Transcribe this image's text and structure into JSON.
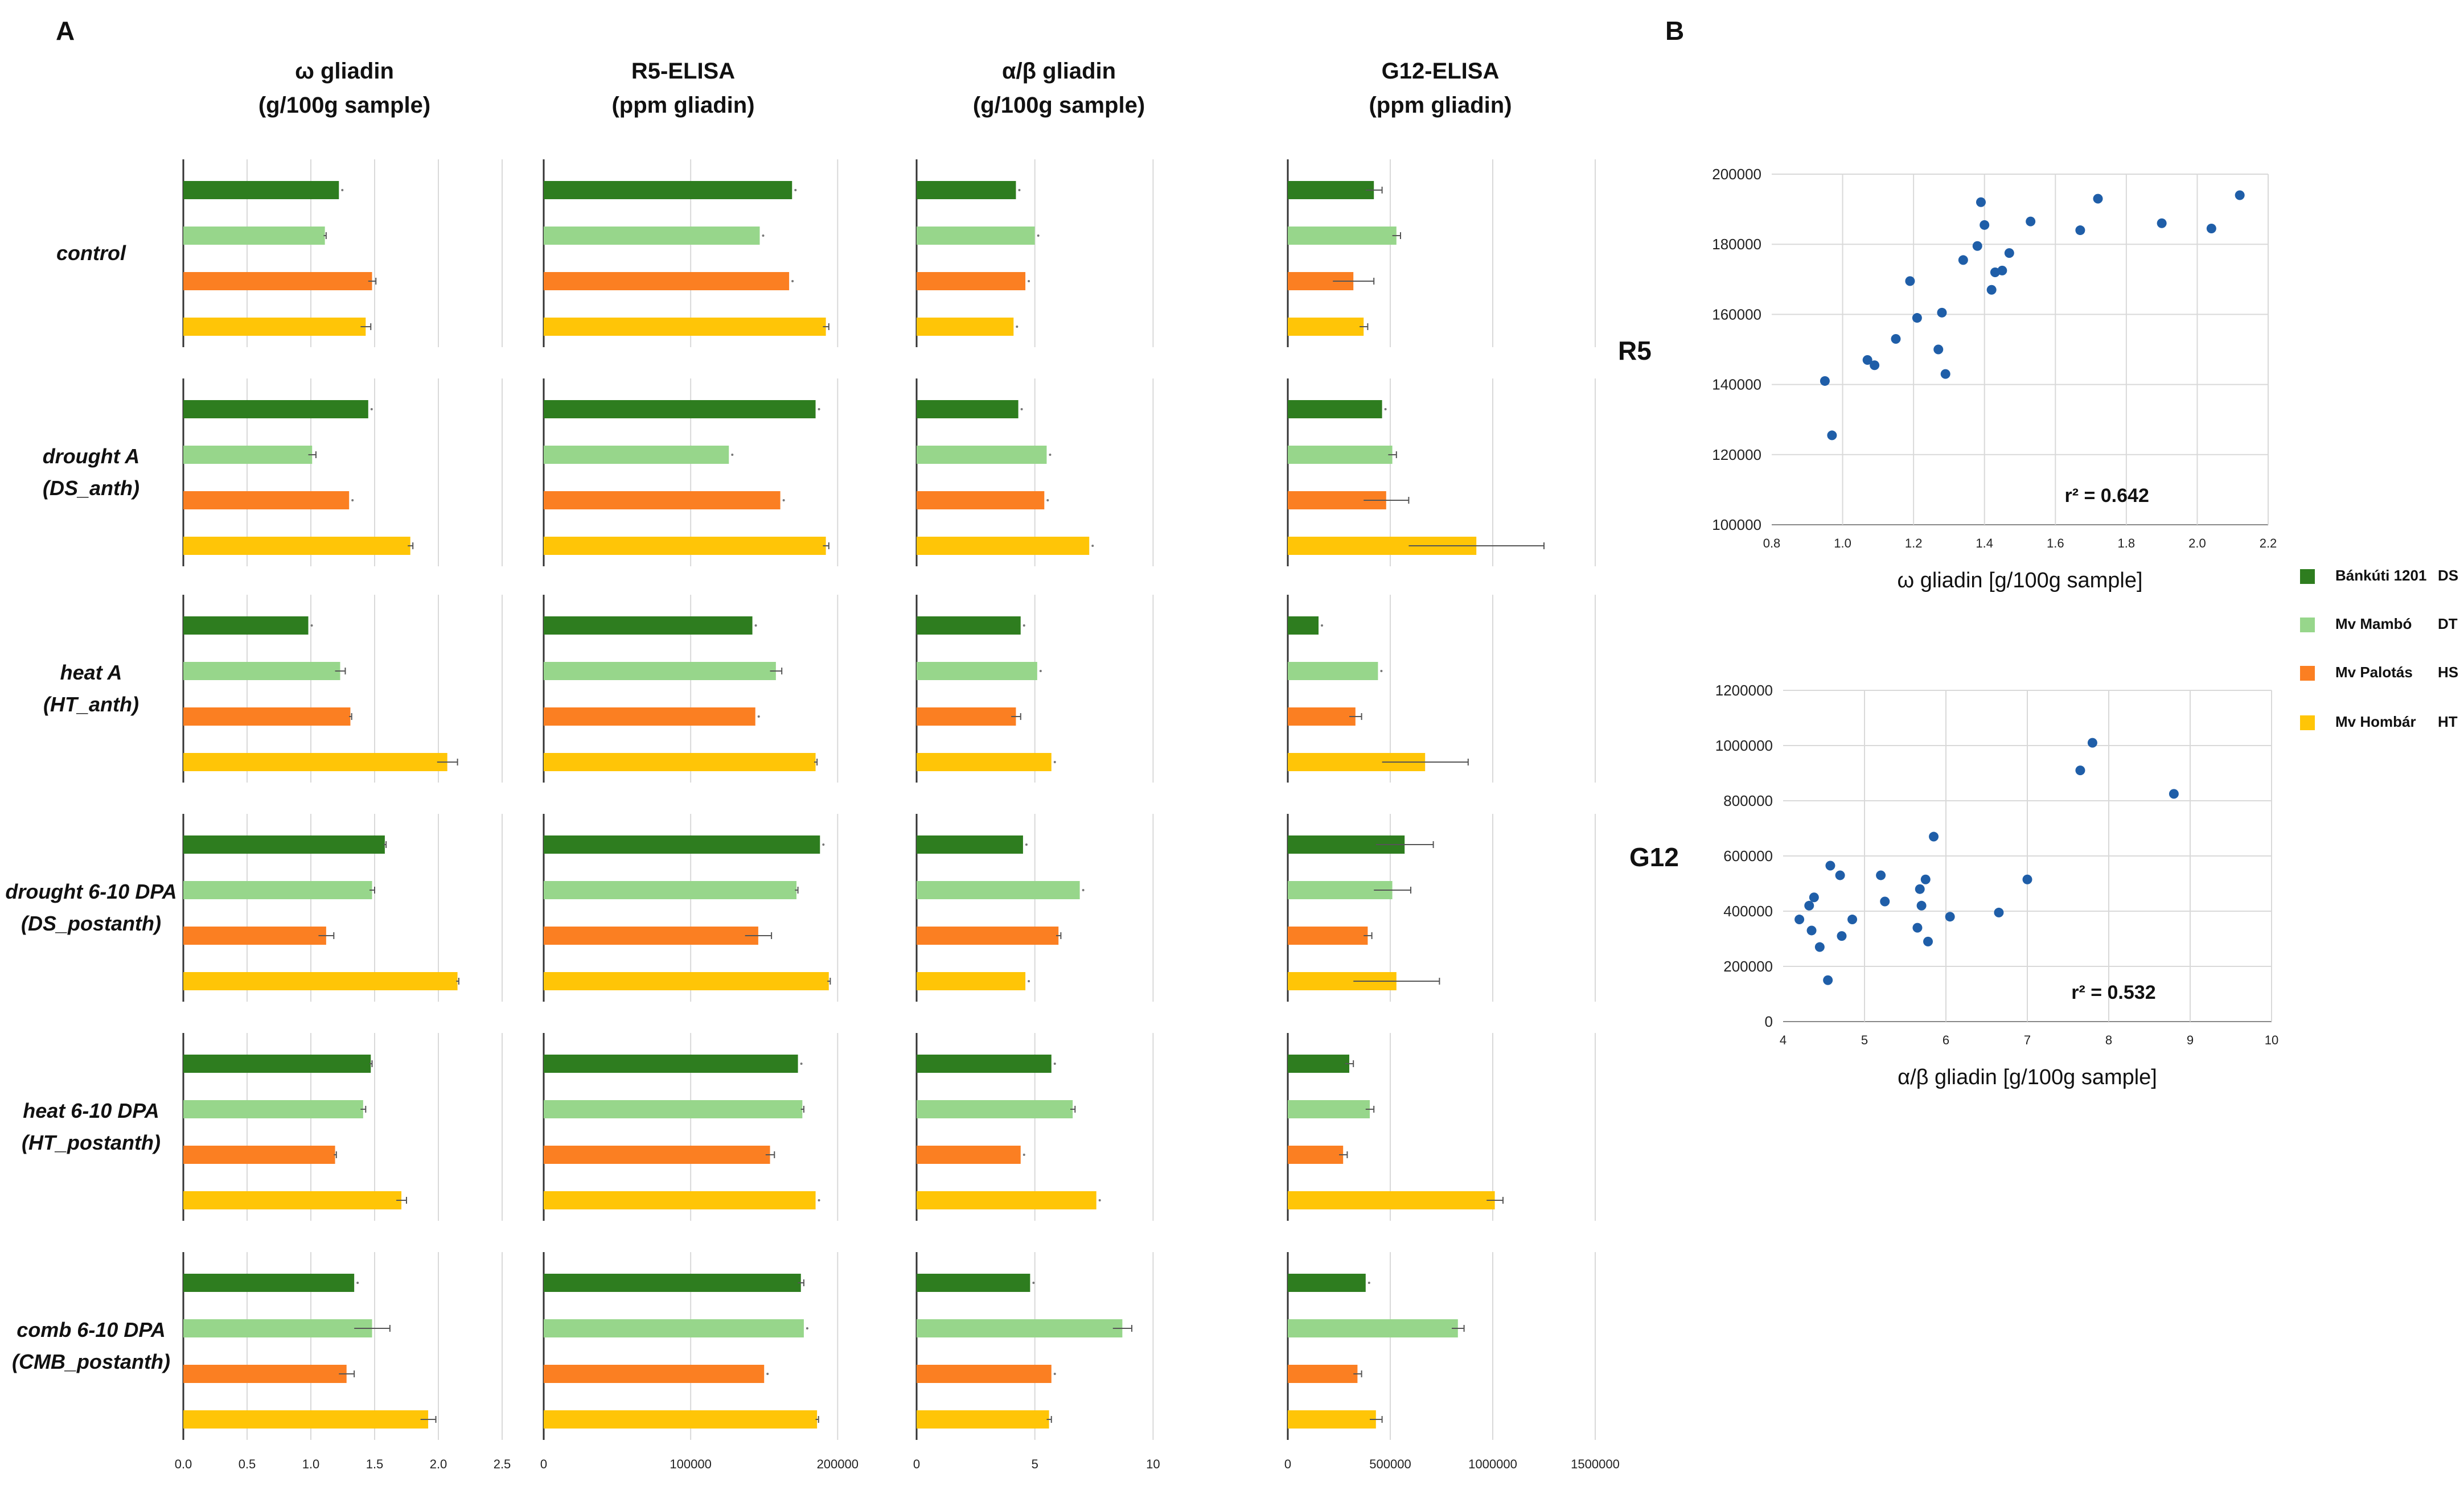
{
  "panel_labels": {
    "a": "A",
    "b": "B"
  },
  "colors": {
    "banktuti": "#2e7d1f",
    "mambo": "#97d68b",
    "palotas": "#fb7f22",
    "hombar": "#ffc507",
    "scatter": "#1f5ea8",
    "grid": "#d9d9d9",
    "axis": "#555555"
  },
  "legend": [
    {
      "label": "Bánkúti 1201",
      "tag": "DS",
      "color_key": "banktuti"
    },
    {
      "label": "Mv Mambó",
      "tag": "DT",
      "color_key": "mambo"
    },
    {
      "label": "Mv Palotás",
      "tag": "HS",
      "color_key": "palotas"
    },
    {
      "label": "Mv Hombár",
      "tag": "HT",
      "color_key": "hombar"
    }
  ],
  "chart_data": [
    {
      "type": "bar",
      "orientation": "horizontal",
      "panel": "A",
      "row_labels": [
        [
          "control"
        ],
        [
          "drought A",
          "(DS_anth)"
        ],
        [
          "heat A",
          "(HT_anth)"
        ],
        [
          "drought 6-10 DPA",
          "(DS_postanth)"
        ],
        [
          "heat 6-10 DPA",
          "(HT_postanth)"
        ],
        [
          "comb 6-10 DPA",
          "(CMB_postanth)"
        ]
      ],
      "varieties": [
        "Bánkúti 1201",
        "Mv Mambó",
        "Mv Palotás",
        "Mv Hombár"
      ],
      "columns": [
        {
          "title": [
            "ω gliadin",
            "(g/100g sample)"
          ],
          "xlim": [
            0,
            2.5
          ],
          "ticks": [
            "0.0",
            "0.5",
            "1.0",
            "1.5",
            "2.0",
            "2.5"
          ],
          "tick_values": [
            0,
            0.5,
            1.0,
            1.5,
            2.0,
            2.5
          ],
          "values": [
            [
              1.22,
              1.11,
              1.48,
              1.43
            ],
            [
              1.45,
              1.01,
              1.3,
              1.78
            ],
            [
              0.98,
              1.23,
              1.31,
              2.07
            ],
            [
              1.58,
              1.48,
              1.12,
              2.15
            ],
            [
              1.47,
              1.41,
              1.19,
              1.71
            ],
            [
              1.34,
              1.48,
              1.28,
              1.92
            ]
          ],
          "errors": [
            [
              0.0,
              0.01,
              0.03,
              0.04
            ],
            [
              0.0,
              0.03,
              0.0,
              0.02
            ],
            [
              0.0,
              0.04,
              0.01,
              0.08
            ],
            [
              0.01,
              0.02,
              0.06,
              0.01
            ],
            [
              0.01,
              0.02,
              0.01,
              0.04
            ],
            [
              0.0,
              0.14,
              0.06,
              0.06
            ]
          ]
        },
        {
          "title": [
            "R5-ELISA",
            "(ppm gliadin)"
          ],
          "xlim": [
            0,
            215000
          ],
          "ticks": [
            "0",
            "100000",
            "200000"
          ],
          "tick_values": [
            0,
            100000,
            200000
          ],
          "values": [
            [
              169000,
              147000,
              167000,
              192000
            ],
            [
              185000,
              126000,
              161000,
              192000
            ],
            [
              142000,
              158000,
              144000,
              185000
            ],
            [
              188000,
              172000,
              146000,
              194000
            ],
            [
              173000,
              176000,
              154000,
              185000
            ],
            [
              175000,
              177000,
              150000,
              186000
            ]
          ],
          "errors": [
            [
              0,
              0,
              0,
              2000
            ],
            [
              0,
              0,
              0,
              2000
            ],
            [
              0,
              4000,
              0,
              1000
            ],
            [
              0,
              1000,
              9000,
              1000
            ],
            [
              0,
              1000,
              3000,
              0
            ],
            [
              2000,
              0,
              0,
              1000
            ]
          ]
        },
        {
          "title": [
            "α/β gliadin",
            "(g/100g sample)"
          ],
          "xlim": [
            0,
            13
          ],
          "ticks": [
            "0",
            "5",
            "10"
          ],
          "tick_values": [
            0,
            5,
            10
          ],
          "values": [
            [
              4.2,
              5.0,
              4.6,
              4.1
            ],
            [
              4.3,
              5.5,
              5.4,
              7.3
            ],
            [
              4.4,
              5.1,
              4.2,
              5.7
            ],
            [
              4.5,
              6.9,
              6.0,
              4.6
            ],
            [
              5.7,
              6.6,
              4.4,
              7.6
            ],
            [
              4.8,
              8.7,
              5.7,
              5.6
            ]
          ],
          "errors": [
            [
              0,
              0,
              0,
              0
            ],
            [
              0,
              0,
              0,
              0
            ],
            [
              0,
              0,
              0.2,
              0
            ],
            [
              0,
              0,
              0.1,
              0
            ],
            [
              0,
              0.1,
              0,
              0
            ],
            [
              0,
              0.4,
              0,
              0.1
            ]
          ]
        },
        {
          "title": [
            "G12-ELISA",
            "(ppm gliadin)"
          ],
          "xlim": [
            0,
            1500000
          ],
          "ticks": [
            "0",
            "500000",
            "1000000",
            "1500000"
          ],
          "tick_values": [
            0,
            500000,
            1000000,
            1500000
          ],
          "values": [
            [
              420000,
              530000,
              320000,
              370000
            ],
            [
              460000,
              510000,
              480000,
              920000
            ],
            [
              150000,
              440000,
              330000,
              670000
            ],
            [
              570000,
              510000,
              390000,
              530000
            ],
            [
              300000,
              400000,
              270000,
              1010000
            ],
            [
              380000,
              830000,
              340000,
              430000
            ]
          ],
          "errors": [
            [
              40000,
              20000,
              100000,
              20000
            ],
            [
              0,
              20000,
              110000,
              330000
            ],
            [
              0,
              0,
              30000,
              210000
            ],
            [
              140000,
              90000,
              20000,
              210000
            ],
            [
              20000,
              20000,
              20000,
              40000
            ],
            [
              0,
              30000,
              20000,
              30000
            ]
          ]
        }
      ]
    },
    {
      "type": "scatter",
      "panel": "B",
      "ylabel": "R5",
      "xlabel": "ω gliadin [g/100g sample]",
      "annotation": "r² = 0.642",
      "xlim": [
        0.8,
        2.2
      ],
      "ylim": [
        100000,
        200000
      ],
      "xticks": [
        "0.8",
        "1.0",
        "1.2",
        "1.4",
        "1.6",
        "1.8",
        "2.0",
        "2.2"
      ],
      "xtick_values": [
        0.8,
        1.0,
        1.2,
        1.4,
        1.6,
        1.8,
        2.0,
        2.2
      ],
      "yticks": [
        "100000",
        "120000",
        "140000",
        "160000",
        "180000",
        "200000"
      ],
      "ytick_values": [
        100000,
        120000,
        140000,
        160000,
        180000,
        200000
      ],
      "points": [
        {
          "x": 0.95,
          "y": 141000
        },
        {
          "x": 0.97,
          "y": 125500
        },
        {
          "x": 1.07,
          "y": 147000
        },
        {
          "x": 1.09,
          "y": 145500
        },
        {
          "x": 1.15,
          "y": 153000
        },
        {
          "x": 1.19,
          "y": 169500
        },
        {
          "x": 1.21,
          "y": 159000
        },
        {
          "x": 1.27,
          "y": 150000
        },
        {
          "x": 1.28,
          "y": 160500
        },
        {
          "x": 1.29,
          "y": 143000
        },
        {
          "x": 1.34,
          "y": 175500
        },
        {
          "x": 1.38,
          "y": 179500
        },
        {
          "x": 1.39,
          "y": 192000
        },
        {
          "x": 1.4,
          "y": 185500
        },
        {
          "x": 1.42,
          "y": 167000
        },
        {
          "x": 1.43,
          "y": 172000
        },
        {
          "x": 1.45,
          "y": 172500
        },
        {
          "x": 1.47,
          "y": 177500
        },
        {
          "x": 1.53,
          "y": 186500
        },
        {
          "x": 1.67,
          "y": 184000
        },
        {
          "x": 1.72,
          "y": 193000
        },
        {
          "x": 1.9,
          "y": 186000
        },
        {
          "x": 2.04,
          "y": 184500
        },
        {
          "x": 2.12,
          "y": 194000
        }
      ]
    },
    {
      "type": "scatter",
      "panel": "B",
      "ylabel": "G12",
      "xlabel": "α/β gliadin [g/100g sample]",
      "annotation": "r² = 0.532",
      "xlim": [
        4,
        10
      ],
      "ylim": [
        0,
        1200000
      ],
      "xticks": [
        "4",
        "5",
        "6",
        "7",
        "8",
        "9",
        "10"
      ],
      "xtick_values": [
        4,
        5,
        6,
        7,
        8,
        9,
        10
      ],
      "yticks": [
        "0",
        "200000",
        "400000",
        "600000",
        "800000",
        "1000000",
        "1200000"
      ],
      "ytick_values": [
        0,
        200000,
        400000,
        600000,
        800000,
        1000000,
        1200000
      ],
      "points": [
        {
          "x": 4.2,
          "y": 370000
        },
        {
          "x": 4.32,
          "y": 420000
        },
        {
          "x": 4.35,
          "y": 330000
        },
        {
          "x": 4.38,
          "y": 450000
        },
        {
          "x": 4.45,
          "y": 270000
        },
        {
          "x": 4.55,
          "y": 150000
        },
        {
          "x": 4.58,
          "y": 565000
        },
        {
          "x": 4.7,
          "y": 530000
        },
        {
          "x": 4.72,
          "y": 310000
        },
        {
          "x": 4.85,
          "y": 370000
        },
        {
          "x": 5.2,
          "y": 530000
        },
        {
          "x": 5.25,
          "y": 435000
        },
        {
          "x": 5.65,
          "y": 340000
        },
        {
          "x": 5.68,
          "y": 480000
        },
        {
          "x": 5.7,
          "y": 420000
        },
        {
          "x": 5.75,
          "y": 515000
        },
        {
          "x": 5.78,
          "y": 290000
        },
        {
          "x": 5.85,
          "y": 670000
        },
        {
          "x": 6.05,
          "y": 380000
        },
        {
          "x": 6.65,
          "y": 395000
        },
        {
          "x": 7.0,
          "y": 515000
        },
        {
          "x": 7.65,
          "y": 910000
        },
        {
          "x": 7.8,
          "y": 1010000
        },
        {
          "x": 8.8,
          "y": 825000
        }
      ]
    }
  ]
}
